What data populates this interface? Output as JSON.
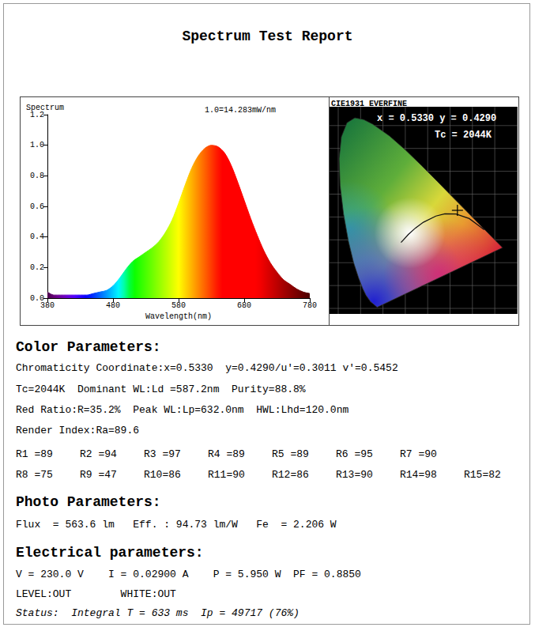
{
  "header": {
    "title": "Spectrum Test Report"
  },
  "chart_data": {
    "type": "line",
    "title": "Spectrum",
    "annotation": "1.0=14.283mW/nm",
    "x_label": "Wavelength(nm)",
    "x": [
      380,
      390,
      400,
      410,
      420,
      430,
      440,
      450,
      460,
      470,
      480,
      490,
      500,
      510,
      520,
      530,
      540,
      550,
      560,
      570,
      580,
      590,
      600,
      610,
      620,
      630,
      640,
      650,
      660,
      670,
      680,
      690,
      700,
      710,
      720,
      730,
      740,
      750,
      760,
      770,
      780
    ],
    "values": [
      0.04,
      0.02,
      0.02,
      0.02,
      0.02,
      0.02,
      0.02,
      0.03,
      0.04,
      0.05,
      0.08,
      0.13,
      0.19,
      0.24,
      0.27,
      0.3,
      0.33,
      0.37,
      0.43,
      0.51,
      0.62,
      0.74,
      0.85,
      0.93,
      0.98,
      1.0,
      0.99,
      0.95,
      0.87,
      0.76,
      0.64,
      0.52,
      0.41,
      0.31,
      0.23,
      0.17,
      0.12,
      0.09,
      0.06,
      0.04,
      0.03
    ],
    "xlim": [
      380,
      780
    ],
    "xticks": [
      380,
      480,
      580,
      680,
      780
    ],
    "ylim": [
      0,
      1.2
    ],
    "yticks": [
      {
        "value": 0,
        "label": "0.0"
      },
      0.2,
      0.4,
      0.6,
      0.8,
      {
        "value": 1,
        "label": "1.0"
      },
      1.2
    ],
    "grid": false
  },
  "cie": {
    "title": "CIE1931 EVERFINE",
    "coordinates": "x = 0.5330 y = 0.4290",
    "tc": "Tc = 2044K",
    "point": [
      0.533,
      0.429
    ]
  },
  "sections": [
    {
      "heading": "Color Parameters:",
      "lines": [
        "Chromaticity Coordinate:x=0.5330  y=0.4290/u'=0.3011 v'=0.5452",
        "Tc=2044K  Dominant WL:Ld =587.2nm  Purity=88.8%",
        "Red Ratio:R=35.2%  Peak WL:Lp=632.0nm  HWL:Lhd=120.0nm",
        "Render Index:Ra=89.6"
      ],
      "rows": [
        [
          "R1 =89",
          "R2 =94",
          "R3 =97",
          "R4 =89",
          "R5 =89",
          "R6 =95",
          "R7 =90"
        ],
        [
          "R8 =75",
          "R9 =47",
          "R10=86",
          "R11=90",
          "R12=86",
          "R13=90",
          "R14=98",
          "R15=82"
        ]
      ]
    },
    {
      "heading": "Photo Parameters:",
      "lines": [
        "Flux  = 563.6 lm   Eff. : 94.73 lm/W   Fe  = 2.206 W"
      ]
    },
    {
      "heading": "Electrical parameters:",
      "lines": [
        "V = 230.0 V    I = 0.02900 A    P = 5.950 W  PF = 0.8850",
        "LEVEL:OUT        WHITE:OUT"
      ]
    }
  ],
  "status": "Status:  Integral T = 633 ms  Ip = 49717 (76%)"
}
